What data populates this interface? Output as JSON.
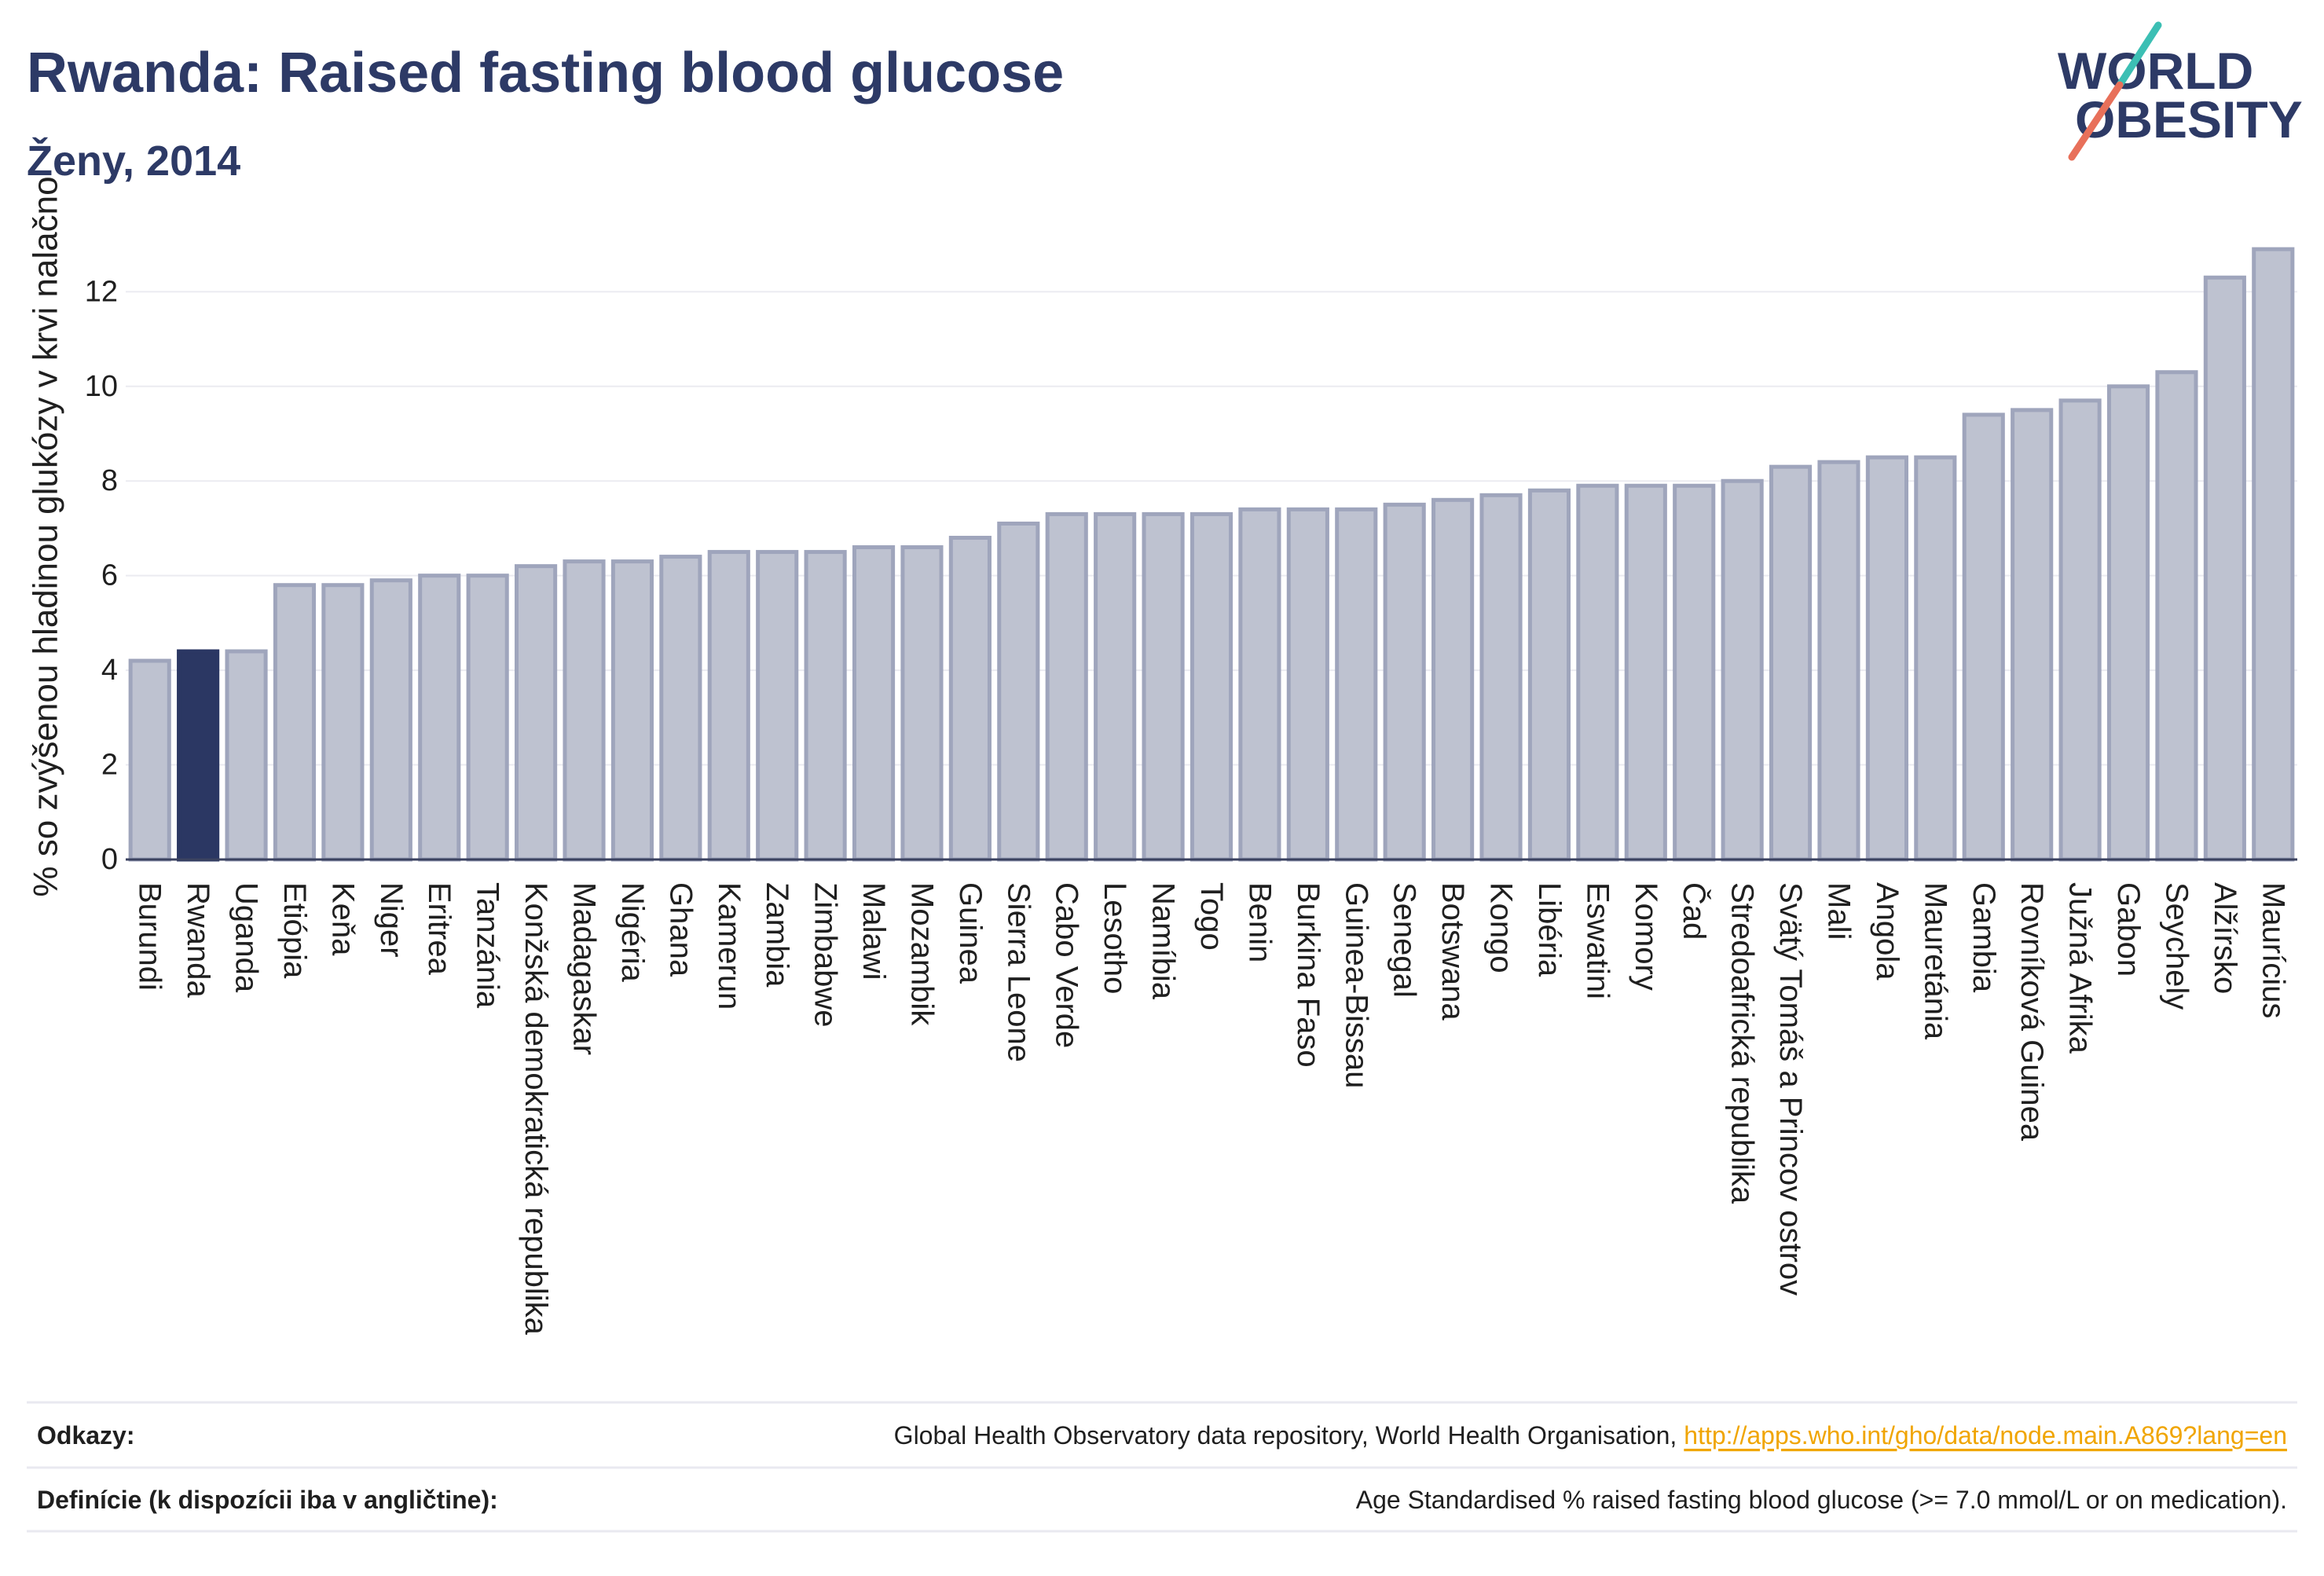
{
  "logo": {
    "line1": "WORLD",
    "line2": "OBESITY"
  },
  "chart_data": {
    "type": "bar",
    "title": "Rwanda: Raised fasting blood glucose",
    "subtitle": "Ženy, 2014",
    "xlabel": "",
    "ylabel": "% so zvýšenou hladinou glukózy v krvi nalačno",
    "categories": [
      "Burundi",
      "Rwanda",
      "Uganda",
      "Etiópia",
      "Keňa",
      "Niger",
      "Eritrea",
      "Tanzánia",
      "Konžská demokratická republika",
      "Madagaskar",
      "Nigéria",
      "Ghana",
      "Kamerun",
      "Zambia",
      "Zimbabwe",
      "Malawi",
      "Mozambik",
      "Guinea",
      "Sierra Leone",
      "Cabo Verde",
      "Lesotho",
      "Namíbia",
      "Togo",
      "Benin",
      "Burkina Faso",
      "Guinea-Bissau",
      "Senegal",
      "Botswana",
      "Kongo",
      "Libéria",
      "Eswatini",
      "Komory",
      "Čad",
      "Stredoafrická republika",
      "Svätý Tomáš a Princov ostrov",
      "Mali",
      "Angola",
      "Mauretánia",
      "Gambia",
      "Rovníková Guinea",
      "Južná Afrika",
      "Gabon",
      "Seychely",
      "Alžírsko",
      "Maurícius"
    ],
    "values": [
      4.2,
      4.4,
      4.4,
      5.8,
      5.8,
      5.9,
      6.0,
      6.0,
      6.2,
      6.3,
      6.3,
      6.4,
      6.5,
      6.5,
      6.5,
      6.6,
      6.6,
      6.8,
      7.1,
      7.3,
      7.3,
      7.3,
      7.3,
      7.4,
      7.4,
      7.4,
      7.5,
      7.6,
      7.7,
      7.8,
      7.9,
      7.9,
      7.9,
      8.0,
      8.3,
      8.4,
      8.5,
      8.5,
      9.4,
      9.5,
      9.7,
      10.0,
      10.3,
      12.3,
      12.9
    ],
    "highlight_index": 1,
    "ylim": [
      0,
      13.5
    ],
    "yticks": [
      0,
      2,
      4,
      6,
      8,
      10,
      12
    ],
    "grid": true,
    "colors": {
      "bar": "#bec2d0",
      "bar_border": "#9fa5bc",
      "highlight": "#2b3763",
      "grid": "#ebebf1",
      "axis": "#3b4260"
    }
  },
  "footer": {
    "references_label": "Odkazy:",
    "references_source": "Global Health Observatory data repository, World Health Organisation,",
    "references_link": "http://apps.who.int/gho/data/node.main.A869?lang=en",
    "definitions_label": "Definície (k dispozícii iba v angličtine):",
    "definitions_text": "Age Standardised % raised fasting blood glucose (>= 7.0 mmol/L or on medication)."
  },
  "colors": {
    "title": "#2d3a66",
    "link": "#f0a500",
    "rule": "#e9e9f0",
    "logo_text": "#2d3a66",
    "logo_teal": "#3cbfb4",
    "logo_coral": "#e8705a"
  }
}
